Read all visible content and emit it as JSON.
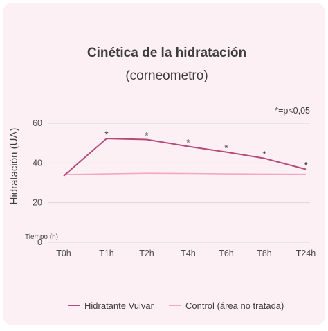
{
  "chart_data": {
    "type": "line",
    "title": "Cinética de la hidratación",
    "subtitle": "(corneometro)",
    "ylabel": "Hidratación (UA)",
    "xlabel": "Tiempo (h)",
    "categories": [
      "T0h",
      "T1h",
      "T2h",
      "T4h",
      "T6h",
      "T8h",
      "T24h"
    ],
    "ylim": [
      0,
      60
    ],
    "yticks": [
      0,
      20,
      40,
      60
    ],
    "grid": "horizontal",
    "note": "*=p<0,05",
    "significance_marker": "*",
    "legend_position": "bottom",
    "series": [
      {
        "name": "Hidratante Vulvar",
        "values": [
          33.5,
          52.3,
          51.8,
          48.3,
          45.5,
          42.3,
          36.8
        ],
        "significant": [
          false,
          true,
          true,
          true,
          true,
          true,
          true
        ],
        "color": "#b64a78"
      },
      {
        "name": "Control (área no tratada)",
        "values": [
          34.2,
          34.5,
          34.8,
          34.7,
          34.5,
          34.4,
          34.3
        ],
        "color": "#f2a7c2"
      }
    ]
  },
  "colors": {
    "background": "#fdf0f4",
    "gridline": "#d9d9d9",
    "text": "#3d3d3d"
  }
}
